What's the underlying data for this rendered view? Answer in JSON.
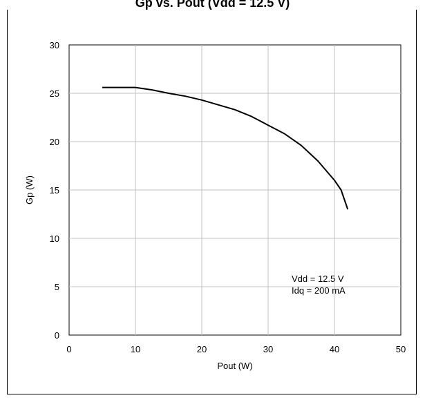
{
  "header": {
    "title_fragment": "Gp vs. Pout (Vdd = 12.5 V)"
  },
  "chart_data": {
    "type": "line",
    "xlabel": "Pout (W)",
    "ylabel": "Gp (W)",
    "xlim": [
      0,
      50
    ],
    "ylim": [
      0,
      30
    ],
    "xticks": [
      0,
      10,
      20,
      30,
      40,
      50
    ],
    "yticks": [
      0,
      5,
      10,
      15,
      20,
      25,
      30
    ],
    "grid": true,
    "series": [
      {
        "x": [
          5,
          10,
          12.5,
          15,
          17.5,
          20,
          22.5,
          25,
          27.5,
          30,
          32.5,
          35,
          37.5,
          40,
          41,
          42
        ],
        "y": [
          25.6,
          25.6,
          25.35,
          25.0,
          24.7,
          24.3,
          23.8,
          23.3,
          22.6,
          21.7,
          20.8,
          19.6,
          18.0,
          16.0,
          15.0,
          13.0
        ]
      }
    ],
    "annotations": [
      "Vdd = 12.5 V",
      "Idq = 200 mA"
    ]
  }
}
